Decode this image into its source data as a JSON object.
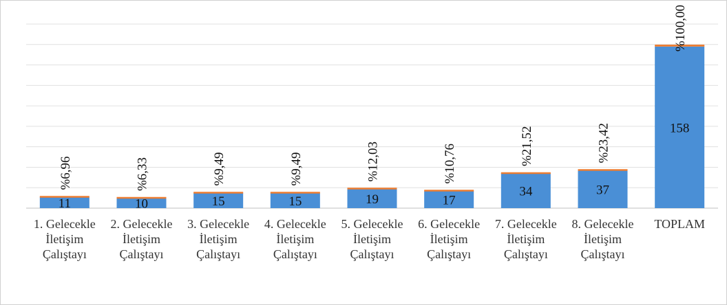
{
  "chart_data": {
    "type": "bar",
    "stacked": true,
    "categories": [
      "1. Gelecekle İletişim Çalıştayı",
      "2. Gelecekle İletişim Çalıştayı",
      "3. Gelecekle İletişim Çalıştayı",
      "4. Gelecekle İletişim Çalıştayı",
      "5. Gelecekle İletişim Çalıştayı",
      "6. Gelecekle İletişim Çalıştayı",
      "7. Gelecekle İletişim Çalıştayı",
      "8. Gelecekle İletişim Çalıştayı",
      "TOPLAM"
    ],
    "series": [
      {
        "color": "#4a8fd6",
        "values": [
          11,
          10,
          15,
          15,
          19,
          17,
          34,
          37,
          158
        ]
      },
      {
        "color": "#ed7d31",
        "values": [
          0.0696,
          0.0633,
          0.0949,
          0.0949,
          0.1203,
          0.1076,
          0.2152,
          0.2342,
          1.0
        ],
        "value_labels": [
          "%6,96",
          "%6,33",
          "%9,49",
          "%9,49",
          "%12,03",
          "%10,76",
          "%21,52",
          "%23,42",
          "%100,00"
        ]
      }
    ],
    "ylim": [
      0,
      180
    ],
    "yticks": [
      0,
      20,
      40,
      60,
      80,
      100,
      120,
      140,
      160,
      180
    ],
    "grid": true
  }
}
